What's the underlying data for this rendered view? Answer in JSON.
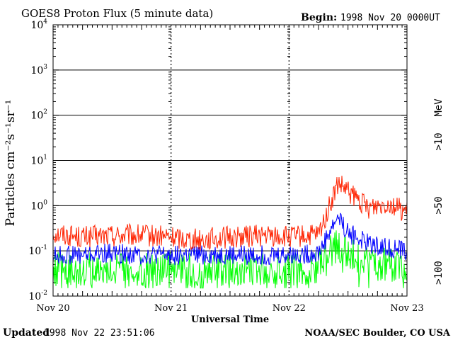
{
  "header": {
    "title": "GOES8 Proton Flux (5 minute data)",
    "begin_label": "Begin:",
    "begin_value": "1998 Nov 20 0000UT"
  },
  "footer": {
    "updated_label": "Updated",
    "updated_value": "1998 Nov 22 23:51:06",
    "source": "NOAA/SEC Boulder, CO USA"
  },
  "colors": {
    "gt10": "#ff2200",
    "gt50": "#0000ff",
    "gt100": "#00ff00"
  },
  "chart_data": {
    "type": "line",
    "title": "GOES8 Proton Flux (5 minute data)",
    "xlabel": "Universal Time",
    "ylabel": "Particles cm⁻²s⁻¹sr⁻¹",
    "yscale": "log",
    "ylim": [
      0.01,
      10000
    ],
    "y_ticks": [
      {
        "value": 0.01,
        "base": "10",
        "exp": "-2"
      },
      {
        "value": 0.1,
        "base": "10",
        "exp": "-1"
      },
      {
        "value": 1,
        "base": "10",
        "exp": "0"
      },
      {
        "value": 10,
        "base": "10",
        "exp": "1"
      },
      {
        "value": 100,
        "base": "10",
        "exp": "2"
      },
      {
        "value": 1000,
        "base": "10",
        "exp": "3"
      },
      {
        "value": 10000,
        "base": "10",
        "exp": "4"
      }
    ],
    "x_ticks": [
      "Nov 20",
      "Nov 21",
      "Nov 22",
      "Nov 23"
    ],
    "xlim": [
      "1998-11-20",
      "1998-11-23"
    ],
    "grid": true,
    "legend": {
      "position": "right",
      "unit": "MeV"
    },
    "series": [
      {
        "name": ">10",
        "color": "#ff2200",
        "x": [
          "1998-11-20 00:00",
          "1998-11-20 06:00",
          "1998-11-20 12:00",
          "1998-11-20 18:00",
          "1998-11-21 00:00",
          "1998-11-21 06:00",
          "1998-11-21 12:00",
          "1998-11-21 18:00",
          "1998-11-22 00:00",
          "1998-11-22 06:00",
          "1998-11-22 10:00",
          "1998-11-22 12:00",
          "1998-11-22 16:00",
          "1998-11-22 20:00",
          "1998-11-22 24:00"
        ],
        "values": [
          0.25,
          0.2,
          0.22,
          0.22,
          0.2,
          0.18,
          0.2,
          0.22,
          0.2,
          0.22,
          3.0,
          2.0,
          0.9,
          1.2,
          0.7
        ]
      },
      {
        "name": ">50",
        "color": "#0000ff",
        "x": [
          "1998-11-20 00:00",
          "1998-11-20 06:00",
          "1998-11-20 12:00",
          "1998-11-20 18:00",
          "1998-11-21 00:00",
          "1998-11-21 06:00",
          "1998-11-21 12:00",
          "1998-11-21 18:00",
          "1998-11-22 00:00",
          "1998-11-22 06:00",
          "1998-11-22 10:00",
          "1998-11-22 12:00",
          "1998-11-22 16:00",
          "1998-11-22 20:00",
          "1998-11-22 24:00"
        ],
        "values": [
          0.08,
          0.08,
          0.09,
          0.08,
          0.08,
          0.08,
          0.08,
          0.08,
          0.08,
          0.09,
          0.6,
          0.25,
          0.15,
          0.12,
          0.1
        ]
      },
      {
        "name": ">100",
        "color": "#00ff00",
        "x": [
          "1998-11-20 00:00",
          "1998-11-20 06:00",
          "1998-11-20 12:00",
          "1998-11-20 18:00",
          "1998-11-21 00:00",
          "1998-11-21 06:00",
          "1998-11-21 12:00",
          "1998-11-21 18:00",
          "1998-11-22 00:00",
          "1998-11-22 06:00",
          "1998-11-22 10:00",
          "1998-11-22 12:00",
          "1998-11-22 16:00",
          "1998-11-22 20:00",
          "1998-11-22 24:00"
        ],
        "values": [
          0.04,
          0.04,
          0.04,
          0.04,
          0.04,
          0.04,
          0.04,
          0.04,
          0.04,
          0.045,
          0.15,
          0.08,
          0.06,
          0.05,
          0.04
        ]
      }
    ]
  }
}
